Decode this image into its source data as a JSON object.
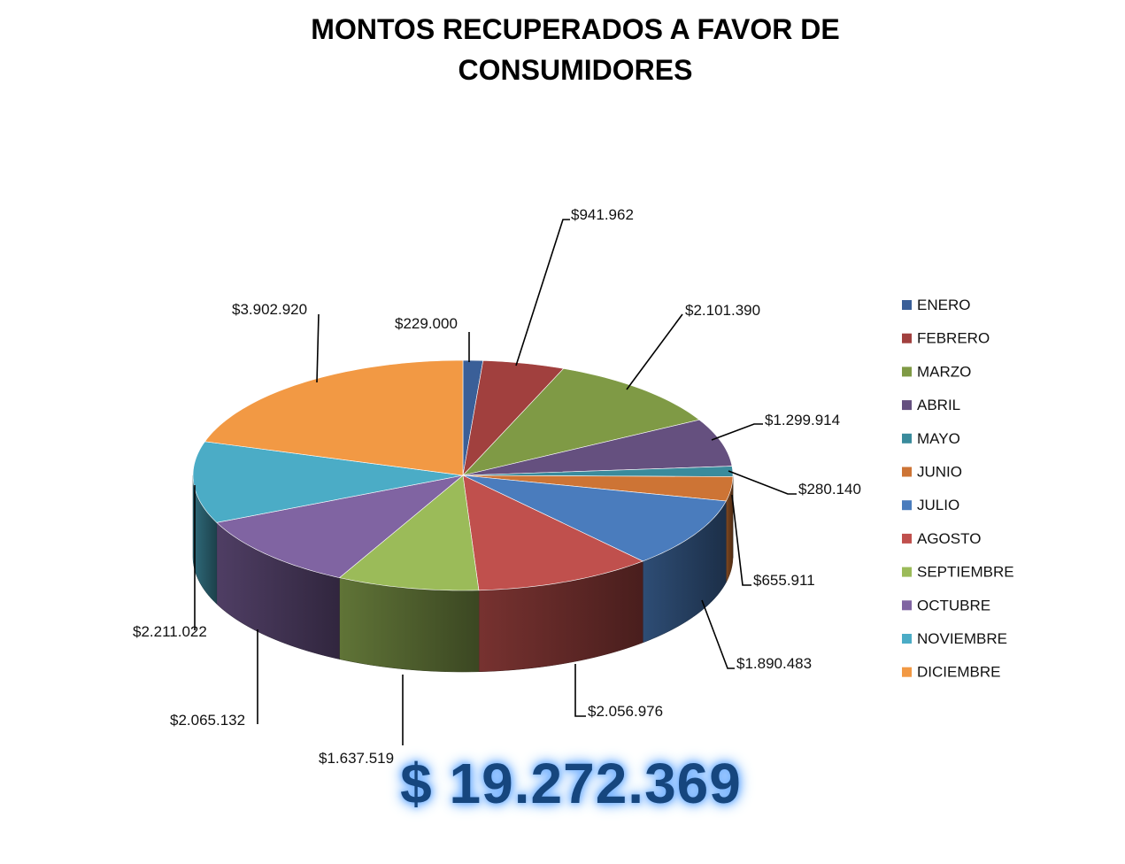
{
  "chart_data": {
    "type": "pie",
    "title_lines": [
      "MONTOS RECUPERADOS A FAVOR DE",
      "CONSUMIDORES"
    ],
    "legend_position": "right",
    "categories": [
      "ENERO",
      "FEBRERO",
      "MARZO",
      "ABRIL",
      "MAYO",
      "JUNIO",
      "JULIO",
      "AGOSTO",
      "SEPTIEMBRE",
      "OCTUBRE",
      "NOVIEMBRE",
      "DICIEMBRE"
    ],
    "values": [
      229000,
      941962,
      2101390,
      1299914,
      280140,
      655911,
      1890483,
      2056976,
      1637519,
      2065132,
      2211022,
      3902920
    ],
    "value_labels": [
      "$229.000",
      "$941.962",
      "$2.101.390",
      "$1.299.914",
      "$280.140",
      "$655.911",
      "$1.890.483",
      "$2.056.976",
      "$1.637.519",
      "$2.065.132",
      "$2.211.022",
      "$3.902.920"
    ],
    "colors": [
      "#3a5f98",
      "#a1403e",
      "#7f9a45",
      "#65507f",
      "#3a8b9c",
      "#cd7435",
      "#4a7cbd",
      "#c0504d",
      "#9bbb59",
      "#8064a2",
      "#4bacc6",
      "#f29944"
    ],
    "total_label": "$ 19.272.369"
  }
}
